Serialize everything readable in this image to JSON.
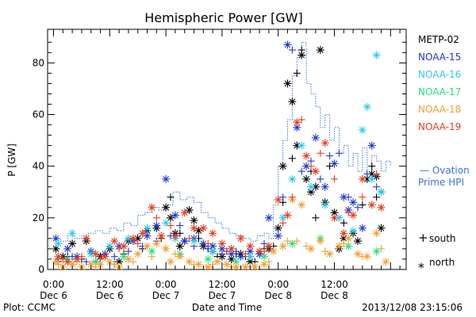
{
  "footer": {
    "left": "Plot: CCMC",
    "right": "2013/12/08 23:15:06"
  },
  "colors": {
    "METP-02": "#000000",
    "NOAA-15": "#1f36d6",
    "NOAA-16": "#2ec8ea",
    "NOAA-17": "#22e080",
    "NOAA-18": "#f0a030",
    "NOAA-19": "#e83a1e",
    "ovation": "#3f6fe0"
  },
  "chart_data": {
    "type": "scatter",
    "title": "Hemispheric Power [GW]",
    "xlabel": "Date and Time",
    "ylabel": "P [GW]",
    "xlim_hours": [
      0,
      72
    ],
    "ylim": [
      0,
      93
    ],
    "ytick_labels": [
      "0",
      "20",
      "40",
      "60",
      "80"
    ],
    "xticks": [
      {
        "h": 0,
        "time": "0:00",
        "day": "Dec 6"
      },
      {
        "h": 12,
        "time": "12:00",
        "day": "Dec 6"
      },
      {
        "h": 24,
        "time": "0:00",
        "day": "Dec 7"
      },
      {
        "h": 36,
        "time": "12:00",
        "day": "Dec 7"
      },
      {
        "h": 48,
        "time": "0:00",
        "day": "Dec 8"
      },
      {
        "h": 60,
        "time": "12:00",
        "day": "Dec 8"
      }
    ],
    "legend": [
      "METP-02",
      "NOAA-15",
      "NOAA-16",
      "NOAA-17",
      "NOAA-18",
      "NOAA-19"
    ],
    "ovation_label_1": "— Ovation",
    "ovation_label_2": "Prime HPI",
    "marker_legend": [
      {
        "symbol": "+",
        "label": "south"
      },
      {
        "symbol": "*",
        "label": "north"
      }
    ],
    "ovation": {
      "name": "Ovation Prime HPI",
      "x": [
        0,
        1.5,
        3,
        4.5,
        6,
        7.5,
        9,
        10.5,
        12,
        13.5,
        15,
        16.5,
        18,
        19.5,
        21,
        22.5,
        24,
        25.5,
        27,
        28.5,
        30,
        31.5,
        33,
        34.5,
        36,
        37.5,
        39,
        40.5,
        42,
        43.5,
        45,
        46,
        47,
        48,
        49,
        50,
        51,
        52,
        53,
        54,
        55,
        56,
        57,
        58,
        59,
        60,
        61,
        62,
        63,
        64,
        65,
        66,
        67,
        68,
        69,
        70,
        71,
        72
      ],
      "y": [
        12,
        11,
        13,
        12,
        13,
        14,
        15,
        14,
        16,
        15,
        18,
        17,
        21,
        22,
        24,
        23,
        25,
        30,
        27,
        28,
        26,
        22,
        20,
        18,
        16,
        14,
        13,
        12,
        11,
        13,
        14,
        12,
        25,
        40,
        50,
        58,
        75,
        82,
        88,
        72,
        68,
        63,
        55,
        60,
        50,
        55,
        45,
        48,
        40,
        45,
        38,
        47,
        35,
        44,
        42,
        38,
        42,
        40
      ]
    },
    "series": [
      {
        "name": "METP-02",
        "marker": "*",
        "values": [
          [
            0.5,
            8
          ],
          [
            2,
            5
          ],
          [
            4,
            10
          ],
          [
            7,
            11
          ],
          [
            10,
            5
          ],
          [
            12,
            8
          ],
          [
            14,
            3
          ],
          [
            16,
            11
          ],
          [
            18,
            12
          ],
          [
            20,
            15
          ],
          [
            22,
            16
          ],
          [
            24,
            24
          ],
          [
            25,
            20
          ],
          [
            26,
            14
          ],
          [
            27,
            9
          ],
          [
            28,
            11
          ],
          [
            29,
            23
          ],
          [
            30,
            19
          ],
          [
            31,
            15
          ],
          [
            32,
            9
          ],
          [
            34,
            7
          ],
          [
            36,
            5
          ],
          [
            38,
            4
          ],
          [
            40,
            6
          ],
          [
            42,
            3
          ],
          [
            44,
            6
          ],
          [
            46,
            8
          ],
          [
            48,
            16
          ],
          [
            49,
            40
          ],
          [
            50,
            72
          ],
          [
            51,
            65
          ],
          [
            52,
            48
          ],
          [
            53,
            83
          ],
          [
            54,
            35
          ],
          [
            55,
            30
          ],
          [
            56,
            32
          ],
          [
            57,
            85
          ],
          [
            58,
            26
          ],
          [
            60,
            22
          ],
          [
            61,
            8
          ],
          [
            62,
            12
          ],
          [
            64,
            14
          ],
          [
            65,
            11
          ],
          [
            67,
            35
          ],
          [
            68,
            37
          ],
          [
            69,
            36
          ],
          [
            70,
            16
          ]
        ]
      },
      {
        "name": "METP-02",
        "marker": "+",
        "values": [
          [
            1,
            3
          ],
          [
            3,
            5
          ],
          [
            6,
            4
          ],
          [
            9,
            3
          ],
          [
            13,
            2
          ],
          [
            15,
            6
          ],
          [
            19,
            8
          ],
          [
            23,
            12
          ],
          [
            25,
            28
          ],
          [
            27,
            14
          ],
          [
            31,
            12
          ],
          [
            33,
            8
          ],
          [
            35,
            5
          ],
          [
            37,
            7
          ],
          [
            39,
            6
          ],
          [
            41,
            5
          ],
          [
            43,
            3
          ],
          [
            45,
            8
          ],
          [
            47,
            9
          ],
          [
            49,
            26
          ],
          [
            51,
            43
          ],
          [
            52,
            76
          ],
          [
            53,
            85
          ],
          [
            55,
            38
          ],
          [
            56,
            20
          ],
          [
            59,
            40
          ],
          [
            62,
            18
          ],
          [
            66,
            25
          ],
          [
            68,
            40
          ],
          [
            69,
            28
          ]
        ]
      },
      {
        "name": "NOAA-15",
        "marker": "*",
        "values": [
          [
            0.5,
            12
          ],
          [
            3,
            8
          ],
          [
            5,
            5
          ],
          [
            8,
            7
          ],
          [
            11,
            6
          ],
          [
            14,
            9
          ],
          [
            17,
            11
          ],
          [
            20,
            13
          ],
          [
            22,
            17
          ],
          [
            24,
            35
          ],
          [
            26,
            21
          ],
          [
            28,
            11
          ],
          [
            30,
            12
          ],
          [
            32,
            10
          ],
          [
            34,
            9
          ],
          [
            36,
            8
          ],
          [
            38,
            6
          ],
          [
            40,
            5
          ],
          [
            42,
            7
          ],
          [
            44,
            6
          ],
          [
            46,
            20
          ],
          [
            48,
            13
          ],
          [
            50,
            87
          ],
          [
            52,
            55
          ],
          [
            54,
            40
          ],
          [
            56,
            51
          ],
          [
            58,
            32
          ],
          [
            60,
            41
          ],
          [
            62,
            28
          ],
          [
            63,
            23
          ],
          [
            64,
            26
          ],
          [
            66,
            16
          ],
          [
            68,
            48
          ],
          [
            70,
            30
          ]
        ]
      },
      {
        "name": "NOAA-15",
        "marker": "+",
        "values": [
          [
            1,
            4
          ],
          [
            4,
            5
          ],
          [
            7,
            3
          ],
          [
            10,
            4
          ],
          [
            13,
            5
          ],
          [
            16,
            7
          ],
          [
            19,
            9
          ],
          [
            22,
            11
          ],
          [
            25,
            13
          ],
          [
            27,
            17
          ],
          [
            30,
            9
          ],
          [
            33,
            8
          ],
          [
            36,
            6
          ],
          [
            39,
            7
          ],
          [
            42,
            5
          ],
          [
            45,
            10
          ],
          [
            49,
            28
          ],
          [
            51,
            85
          ],
          [
            53,
            38
          ],
          [
            55,
            42
          ],
          [
            57,
            35
          ],
          [
            59,
            44
          ],
          [
            61,
            45
          ],
          [
            63,
            28
          ],
          [
            65,
            24
          ],
          [
            67,
            37
          ],
          [
            69,
            32
          ]
        ]
      },
      {
        "name": "NOAA-16",
        "marker": "*",
        "values": [
          [
            1,
            10
          ],
          [
            4,
            14
          ],
          [
            8,
            6
          ],
          [
            12,
            9
          ],
          [
            16,
            12
          ],
          [
            20,
            16
          ],
          [
            24,
            18
          ],
          [
            26,
            12
          ],
          [
            30,
            11
          ],
          [
            34,
            7
          ],
          [
            38,
            8
          ],
          [
            42,
            5
          ],
          [
            46,
            9
          ],
          [
            49,
            20
          ],
          [
            51,
            35
          ],
          [
            53,
            48
          ],
          [
            55,
            32
          ],
          [
            58,
            25
          ],
          [
            61,
            20
          ],
          [
            64,
            15
          ],
          [
            66,
            54
          ],
          [
            67,
            63
          ],
          [
            68,
            35
          ],
          [
            69,
            83
          ],
          [
            70,
            30
          ]
        ]
      },
      {
        "name": "NOAA-17",
        "marker": "*",
        "values": [
          [
            3,
            4
          ],
          [
            9,
            3
          ],
          [
            15,
            5
          ],
          [
            21,
            7
          ],
          [
            27,
            6
          ],
          [
            33,
            4
          ],
          [
            39,
            3
          ],
          [
            45,
            5
          ],
          [
            51,
            10
          ],
          [
            57,
            12
          ],
          [
            63,
            9
          ],
          [
            69,
            7
          ]
        ]
      },
      {
        "name": "NOAA-18",
        "marker": "*",
        "values": [
          [
            0.5,
            3
          ],
          [
            2,
            1
          ],
          [
            4,
            2
          ],
          [
            6,
            1
          ],
          [
            8,
            2
          ],
          [
            10,
            2
          ],
          [
            12,
            3
          ],
          [
            14,
            1
          ],
          [
            16,
            4
          ],
          [
            18,
            6
          ],
          [
            20,
            9
          ],
          [
            22,
            10
          ],
          [
            24,
            8
          ],
          [
            25,
            3
          ],
          [
            27,
            5
          ],
          [
            29,
            3
          ],
          [
            31,
            2
          ],
          [
            33,
            1
          ],
          [
            35,
            3
          ],
          [
            37,
            2
          ],
          [
            39,
            1
          ],
          [
            41,
            1
          ],
          [
            43,
            1
          ],
          [
            45,
            2
          ],
          [
            47,
            7
          ],
          [
            49,
            9
          ],
          [
            51,
            27
          ],
          [
            53,
            25
          ],
          [
            55,
            8
          ],
          [
            57,
            11
          ],
          [
            59,
            6
          ],
          [
            61,
            9
          ],
          [
            63,
            12
          ],
          [
            65,
            6
          ],
          [
            67,
            5
          ],
          [
            69,
            14
          ],
          [
            71,
            3
          ]
        ]
      },
      {
        "name": "NOAA-18",
        "marker": "+",
        "values": [
          [
            1,
            2
          ],
          [
            5,
            3
          ],
          [
            9,
            1
          ],
          [
            13,
            2
          ],
          [
            17,
            3
          ],
          [
            21,
            5
          ],
          [
            26,
            6
          ],
          [
            30,
            2
          ],
          [
            34,
            2
          ],
          [
            38,
            1
          ],
          [
            42,
            1
          ],
          [
            46,
            3
          ],
          [
            50,
            11
          ],
          [
            52,
            11
          ],
          [
            54,
            9
          ],
          [
            58,
            7
          ],
          [
            62,
            10
          ],
          [
            66,
            5
          ],
          [
            70,
            8
          ]
        ]
      },
      {
        "name": "NOAA-19",
        "marker": "*",
        "values": [
          [
            1,
            5
          ],
          [
            3,
            3
          ],
          [
            5,
            4
          ],
          [
            7,
            12
          ],
          [
            9,
            6
          ],
          [
            11,
            5
          ],
          [
            13,
            11
          ],
          [
            15,
            9
          ],
          [
            17,
            12
          ],
          [
            19,
            14
          ],
          [
            21,
            24
          ],
          [
            23,
            13
          ],
          [
            26,
            13
          ],
          [
            28,
            22
          ],
          [
            30,
            16
          ],
          [
            32,
            16
          ],
          [
            34,
            14
          ],
          [
            36,
            10
          ],
          [
            38,
            8
          ],
          [
            40,
            12
          ],
          [
            42,
            9
          ],
          [
            44,
            7
          ],
          [
            46,
            9
          ],
          [
            48,
            27
          ],
          [
            50,
            21
          ],
          [
            52,
            57
          ],
          [
            54,
            44
          ],
          [
            56,
            38
          ],
          [
            58,
            49
          ],
          [
            60,
            20
          ],
          [
            62,
            14
          ],
          [
            64,
            21
          ],
          [
            66,
            35
          ],
          [
            68,
            25
          ],
          [
            70,
            24
          ]
        ]
      },
      {
        "name": "NOAA-19",
        "marker": "+",
        "values": [
          [
            2,
            4
          ],
          [
            6,
            5
          ],
          [
            10,
            4
          ],
          [
            14,
            8
          ],
          [
            18,
            10
          ],
          [
            22,
            20
          ],
          [
            25,
            17
          ],
          [
            29,
            12
          ],
          [
            33,
            10
          ],
          [
            37,
            7
          ],
          [
            41,
            6
          ],
          [
            45,
            7
          ],
          [
            49,
            18
          ],
          [
            51,
            28
          ],
          [
            53,
            58
          ],
          [
            55,
            40
          ],
          [
            57,
            45
          ],
          [
            60,
            35
          ],
          [
            63,
            22
          ],
          [
            66,
            28
          ],
          [
            69,
            37
          ]
        ]
      }
    ]
  }
}
